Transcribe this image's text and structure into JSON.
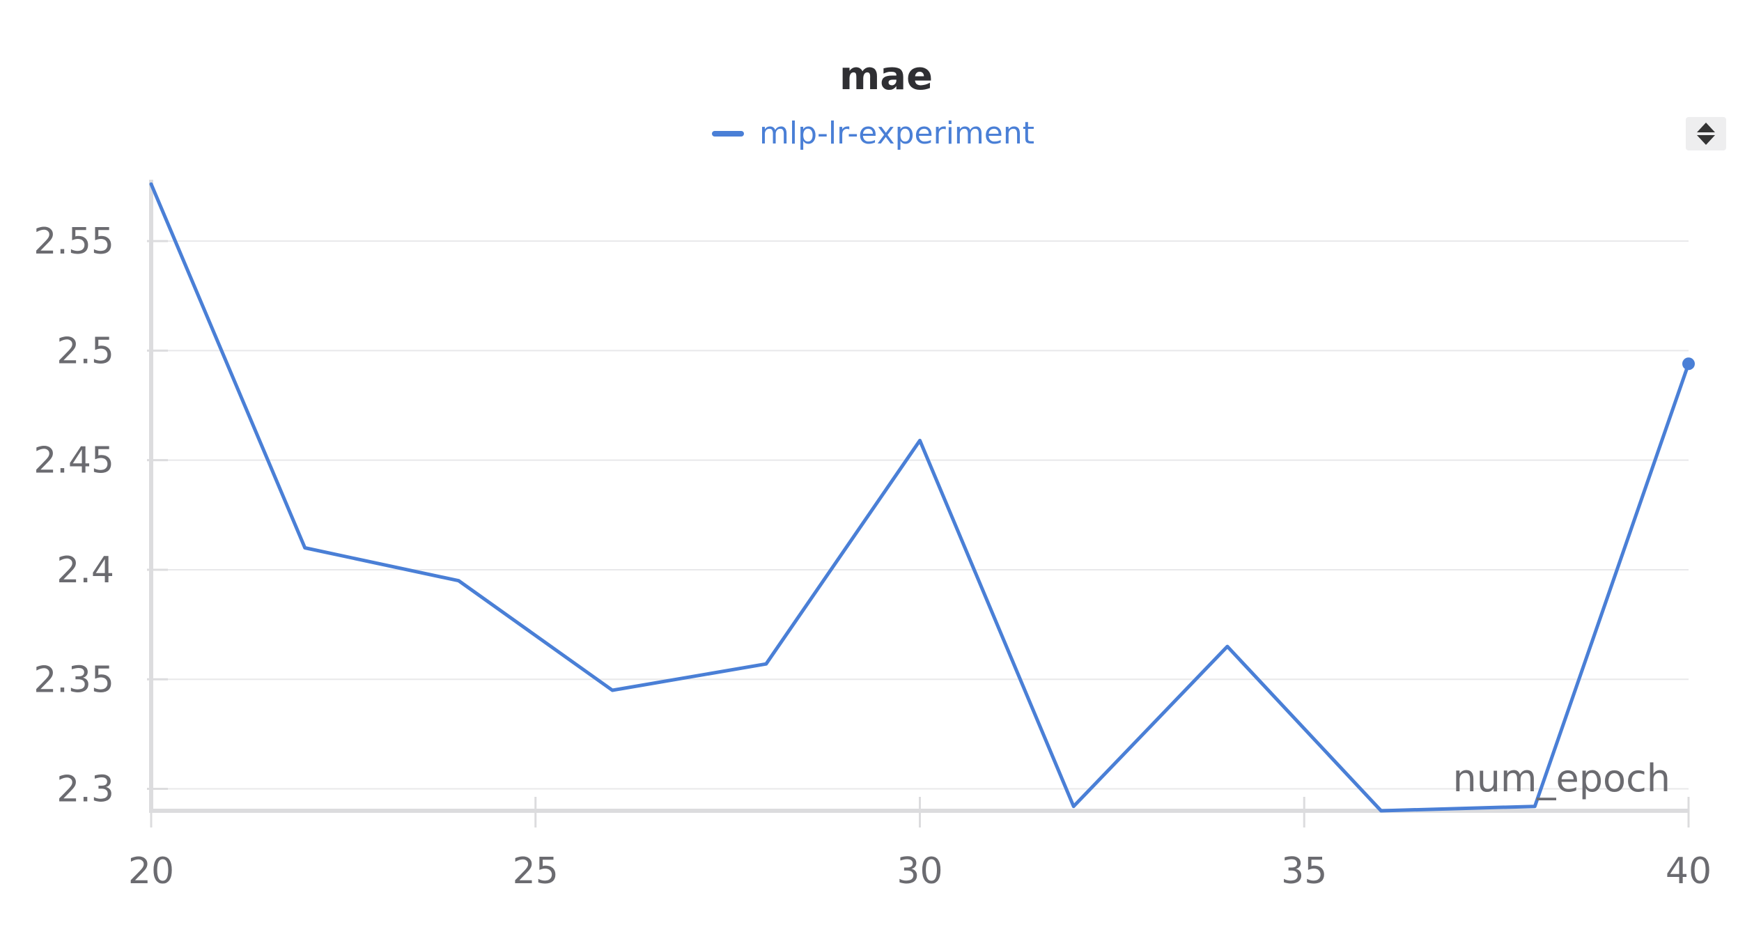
{
  "chart_data": {
    "type": "line",
    "title": "mae",
    "xlabel": "num_epoch",
    "ylabel": "",
    "xlim": [
      20,
      40
    ],
    "ylim": [
      2.29,
      2.578
    ],
    "xticks": [
      20,
      25,
      30,
      35,
      40
    ],
    "xtick_labels": [
      "20",
      "25",
      "30",
      "35",
      "40"
    ],
    "yticks": [
      2.3,
      2.35,
      2.4,
      2.45,
      2.5,
      2.55
    ],
    "ytick_labels": [
      "2.3",
      "2.35",
      "2.4",
      "2.45",
      "2.5",
      "2.55"
    ],
    "grid": true,
    "legend_position": "top-center",
    "series": [
      {
        "name": "mlp-lr-experiment",
        "color": "#4a7fd6",
        "x": [
          20,
          22,
          24,
          26,
          28,
          30,
          32,
          34,
          36,
          38,
          40
        ],
        "y": [
          2.576,
          2.41,
          2.395,
          2.345,
          2.357,
          2.459,
          2.292,
          2.365,
          2.29,
          2.292,
          2.494
        ]
      }
    ]
  },
  "controls": {
    "sort_icon": "sort-up-down-icon"
  }
}
